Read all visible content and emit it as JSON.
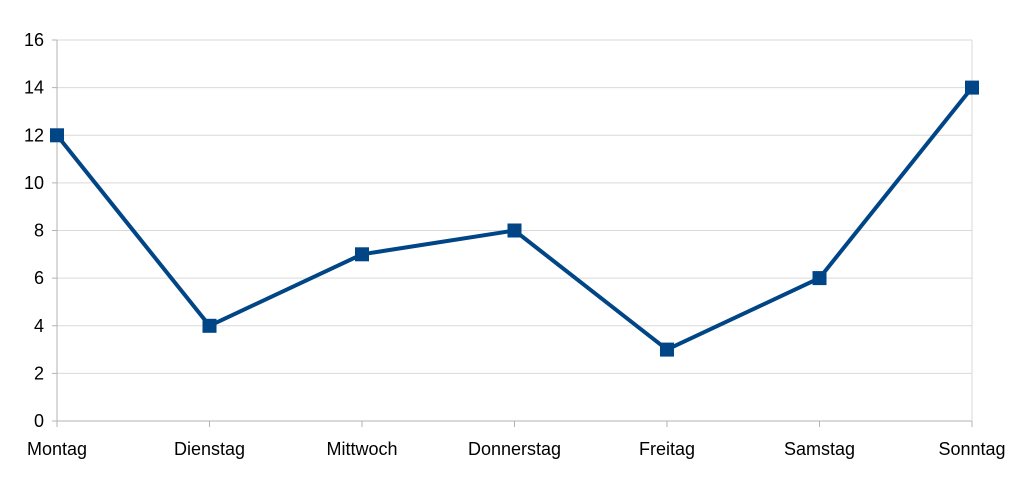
{
  "chart_data": {
    "type": "line",
    "title": "",
    "xlabel": "",
    "ylabel": "",
    "categories": [
      "Montag",
      "Dienstag",
      "Mittwoch",
      "Donnerstag",
      "Freitag",
      "Samstag",
      "Sonntag"
    ],
    "series": [
      {
        "values": [
          12,
          4,
          7,
          8,
          3,
          6,
          14
        ],
        "color": "#004586",
        "marker": "square"
      }
    ],
    "ylim": [
      0,
      16
    ],
    "yticks": [
      0,
      2,
      4,
      6,
      8,
      10,
      12,
      14,
      16
    ],
    "grid": true,
    "legend": "none"
  }
}
